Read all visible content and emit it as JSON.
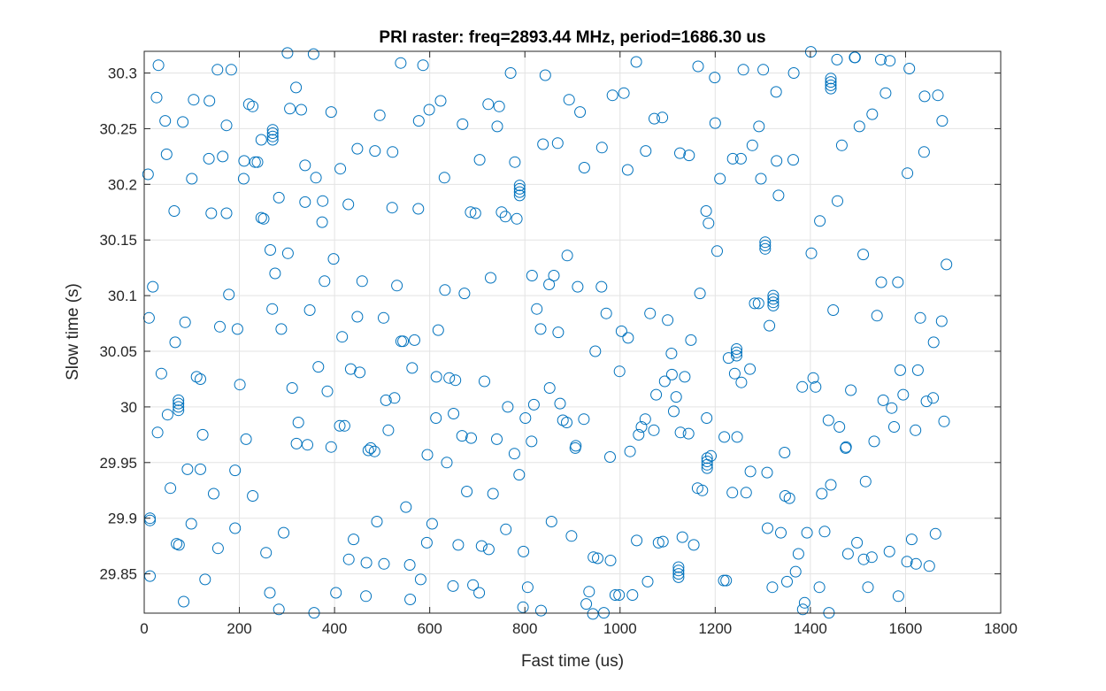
{
  "chart_data": {
    "type": "scatter",
    "title": "PRI raster: freq=2893.44 MHz, period=1686.30 us",
    "xlabel": "Fast time (us)",
    "ylabel": "Slow time (s)",
    "xlim": [
      0,
      1800
    ],
    "ylim": [
      29.8147,
      30.3195
    ],
    "xticks": [
      0,
      200,
      400,
      600,
      800,
      1000,
      1200,
      1400,
      1600,
      1800
    ],
    "xtick_labels": [
      "0",
      "200",
      "400",
      "600",
      "800",
      "1000",
      "1200",
      "1400",
      "1600",
      "1800"
    ],
    "yticks": [
      29.85,
      29.9,
      29.95,
      30,
      30.05,
      30.1,
      30.15,
      30.2,
      30.25,
      30.3
    ],
    "ytick_labels": [
      "29.85",
      "29.9",
      "29.95",
      "30",
      "30.05",
      "30.1",
      "30.15",
      "30.2",
      "30.25",
      "30.3"
    ],
    "grid": true,
    "marker": "circle-open",
    "marker_color": "#0072BD",
    "series": [
      {
        "x": [
          12,
          28,
          47,
          65,
          83,
          100,
          118,
          137,
          155,
          173,
          191,
          210,
          228,
          246,
          265,
          283,
          302,
          320,
          338,
          357,
          375,
          393,
          412,
          430,
          448,
          467,
          485,
          504,
          522,
          540,
          559,
          577,
          595,
          614,
          632,
          650,
          669,
          687,
          705,
          724,
          742,
          760,
          779,
          797,
          815,
          834,
          852,
          870,
          889,
          907,
          925,
          944,
          962,
          980,
          999,
          1017,
          1035,
          1054,
          1072,
          1090,
          1109,
          1127,
          1145,
          1164,
          1182,
          1200,
          1219,
          1237,
          1255,
          1274,
          1292,
          1310,
          1329,
          1347,
          1365,
          1384,
          1402,
          1420,
          1439,
          1457,
          1475,
          1494,
          1512,
          1530,
          1549,
          1567,
          1585,
          1604,
          1622,
          1640,
          1659,
          1677,
          18,
          36,
          55,
          73,
          91,
          110,
          128,
          146,
          165,
          183,
          201,
          220,
          238,
          256,
          275,
          293,
          311,
          330,
          348,
          366,
          385,
          403,
          421,
          440,
          458,
          476,
          495,
          513,
          531,
          550,
          568,
          586,
          605,
          623,
          641,
          660,
          678,
          696,
          715,
          733,
          751,
          770,
          788,
          806,
          825,
          843,
          861,
          880,
          898,
          916,
          935,
          953,
          971,
          990,
          1008,
          1026,
          1045,
          1063,
          1081,
          1100,
          1118,
          1136,
          1155,
          1173,
          1191,
          1210,
          1228,
          1246,
          1265,
          1283,
          1301,
          1320,
          1338,
          1356,
          1375,
          1393,
          1411,
          1430,
          1448,
          1466,
          1485,
          1503,
          1521,
          1540,
          1558,
          1576,
          1595,
          1613,
          1631,
          1650,
          1668,
          1686,
          8,
          26,
          44,
          63,
          81,
          99,
          118,
          136,
          154,
          173,
          191,
          209,
          228,
          246,
          264,
          283,
          301,
          319,
          338,
          356,
          374,
          393,
          411,
          429,
          448,
          466,
          484,
          503,
          521,
          539,
          558,
          576,
          594,
          613,
          631,
          649,
          668,
          686,
          704,
          723,
          741,
          759,
          778,
          796,
          814,
          833,
          851,
          869,
          888,
          906,
          924,
          943,
          961,
          979,
          998,
          1016,
          1034,
          1053,
          1071,
          1089,
          1108,
          1126,
          1144,
          1163,
          1181,
          1199,
          1218,
          1236,
          1254,
          1273,
          1291,
          1309,
          1328,
          1346,
          1364,
          1383,
          1401,
          1419,
          1438,
          1456,
          1474,
          1493,
          1511,
          1529,
          1548,
          1566,
          1584,
          1603,
          1621,
          1639,
          1658,
          1676,
          10,
          30,
          49,
          68,
          86,
          104,
          123,
          141,
          159,
          178,
          196,
          214,
          233,
          251,
          269,
          288,
          306,
          324,
          343,
          361,
          379,
          398,
          416,
          434,
          453,
          471,
          489,
          508,
          526,
          544,
          563,
          581,
          599,
          618,
          636,
          654,
          673,
          691,
          709,
          728,
          746,
          764,
          783,
          801,
          819,
          838,
          856,
          874,
          893,
          911,
          929,
          948,
          966,
          984,
          1003,
          1021,
          1039,
          1058,
          1076,
          1094,
          1113,
          1131,
          1149,
          1168,
          1186,
          1204,
          1223,
          1241,
          1259,
          1278,
          1296,
          1314,
          1333,
          1351,
          1369,
          1388,
          1406,
          1424,
          1443,
          1461,
          1479,
          1498,
          1516,
          1534,
          1553,
          1571,
          1589,
          1608,
          1626,
          1644,
          1663,
          1681,
          72,
          72,
          72,
          72,
          270,
          270,
          270,
          270,
          789,
          789,
          789,
          789,
          1123,
          1123,
          1123,
          1123,
          1183,
          1183,
          1183,
          1183,
          1245,
          1245,
          1245,
          1305,
          1305,
          1305,
          1322,
          1322,
          1322,
          1322,
          1443,
          1443,
          1443,
          1443,
          12,
          12
        ],
        "y": [
          29.848,
          29.977,
          30.227,
          30.058,
          29.825,
          30.205,
          30.025,
          30.275,
          29.873,
          30.253,
          29.891,
          30.221,
          29.92,
          30.24,
          30.141,
          29.818,
          30.138,
          29.967,
          30.217,
          29.815,
          30.185,
          29.964,
          30.214,
          29.863,
          30.232,
          29.86,
          30.23,
          29.859,
          30.229,
          30.059,
          29.827,
          30.257,
          29.957,
          30.027,
          30.105,
          29.994,
          30.254,
          29.972,
          30.222,
          29.872,
          30.252,
          29.89,
          30.22,
          29.87,
          30.118,
          29.817,
          30.017,
          30.067,
          30.136,
          29.965,
          30.215,
          29.865,
          30.233,
          29.862,
          30.032,
          30.062,
          29.88,
          30.23,
          30.259,
          29.879,
          30.029,
          29.977,
          30.226,
          30.306,
          29.99,
          30.255,
          29.973,
          30.223,
          30.022,
          29.942,
          30.252,
          29.891,
          30.221,
          29.92,
          30.3,
          29.818,
          30.138,
          30.167,
          29.815,
          30.185,
          29.964,
          30.314,
          29.863,
          30.263,
          30.112,
          30.311,
          29.83,
          30.21,
          29.859,
          30.279,
          30.058,
          30.257,
          30.108,
          30.03,
          29.927,
          29.876,
          29.944,
          30.027,
          29.845,
          29.922,
          30.225,
          30.303,
          30.02,
          30.272,
          30.22,
          29.869,
          30.12,
          29.887,
          30.017,
          30.267,
          30.087,
          30.036,
          30.014,
          29.833,
          29.983,
          29.881,
          30.113,
          29.963,
          30.262,
          29.979,
          30.109,
          29.91,
          30.06,
          30.307,
          29.895,
          30.275,
          30.026,
          29.876,
          29.924,
          30.174,
          30.023,
          29.922,
          30.175,
          30.3,
          29.939,
          29.838,
          30.088,
          30.298,
          30.118,
          29.988,
          29.884,
          30.265,
          29.834,
          29.864,
          30.084,
          29.831,
          30.282,
          29.831,
          29.982,
          30.084,
          29.878,
          30.078,
          30.009,
          30.027,
          29.876,
          29.925,
          29.956,
          30.205,
          30.044,
          29.973,
          29.923,
          30.093,
          30.303,
          29.838,
          29.887,
          29.918,
          29.868,
          29.887,
          30.018,
          29.888,
          30.087,
          30.235,
          30.015,
          30.252,
          29.838,
          30.082,
          30.282,
          29.982,
          30.011,
          29.881,
          30.08,
          29.857,
          30.28,
          30.128,
          30.209,
          30.278,
          30.257,
          30.176,
          30.256,
          29.895,
          29.944,
          30.223,
          30.303,
          30.174,
          29.943,
          30.205,
          30.27,
          30.17,
          29.833,
          30.188,
          30.318,
          30.287,
          30.184,
          30.317,
          30.166,
          30.265,
          29.983,
          30.182,
          30.081,
          29.83,
          29.96,
          30.08,
          30.179,
          30.309,
          29.858,
          30.178,
          29.878,
          29.99,
          30.206,
          29.839,
          29.974,
          30.175,
          29.833,
          30.272,
          29.971,
          30.171,
          29.958,
          29.82,
          29.969,
          30.07,
          30.11,
          30.237,
          29.986,
          29.963,
          29.989,
          29.814,
          30.108,
          29.955,
          29.831,
          30.213,
          30.31,
          29.989,
          29.979,
          30.26,
          30.048,
          30.228,
          29.976,
          29.927,
          30.176,
          30.296,
          29.844,
          29.923,
          30.223,
          30.034,
          30.093,
          29.941,
          30.283,
          29.959,
          30.222,
          30.018,
          30.319,
          29.838,
          29.988,
          30.312,
          29.963,
          30.314,
          30.137,
          29.865,
          30.312,
          29.87,
          30.112,
          29.861,
          29.979,
          30.229,
          30.008,
          30.077,
          30.08,
          30.307,
          29.993,
          29.877,
          30.076,
          30.276,
          29.975,
          30.174,
          30.072,
          30.101,
          30.07,
          29.971,
          30.22,
          30.169,
          30.088,
          30.07,
          30.268,
          29.986,
          29.966,
          30.206,
          30.113,
          30.133,
          30.063,
          30.034,
          30.031,
          29.961,
          29.897,
          30.006,
          30.008,
          30.059,
          30.035,
          29.845,
          30.267,
          30.069,
          29.95,
          30.024,
          30.102,
          29.84,
          29.875,
          30.116,
          30.27,
          30.0,
          30.169,
          29.99,
          30.002,
          30.236,
          29.897,
          30.003,
          30.276,
          30.108,
          29.823,
          30.05,
          29.815,
          30.28,
          30.068,
          29.96,
          29.975,
          29.843,
          30.011,
          30.023,
          29.996,
          29.883,
          30.06,
          30.102,
          30.165,
          30.14,
          29.844,
          30.03,
          30.303,
          30.235,
          30.205,
          30.073,
          30.19,
          29.843,
          29.852,
          29.824,
          30.026,
          29.922,
          29.93,
          29.982,
          29.868,
          29.878,
          29.933,
          29.969,
          30.006,
          29.999,
          30.033,
          30.304,
          30.033,
          30.005,
          29.886,
          29.987,
          29.997,
          30.0,
          30.003,
          30.006,
          30.24,
          30.243,
          30.246,
          30.249,
          30.19,
          30.193,
          30.196,
          30.199,
          29.847,
          29.85,
          29.853,
          29.856,
          29.945,
          29.948,
          29.951,
          29.954,
          30.046,
          30.049,
          30.052,
          30.142,
          30.145,
          30.148,
          30.091,
          30.094,
          30.097,
          30.1,
          30.286,
          30.289,
          30.292,
          30.295,
          29.898,
          29.9
        ]
      }
    ]
  }
}
